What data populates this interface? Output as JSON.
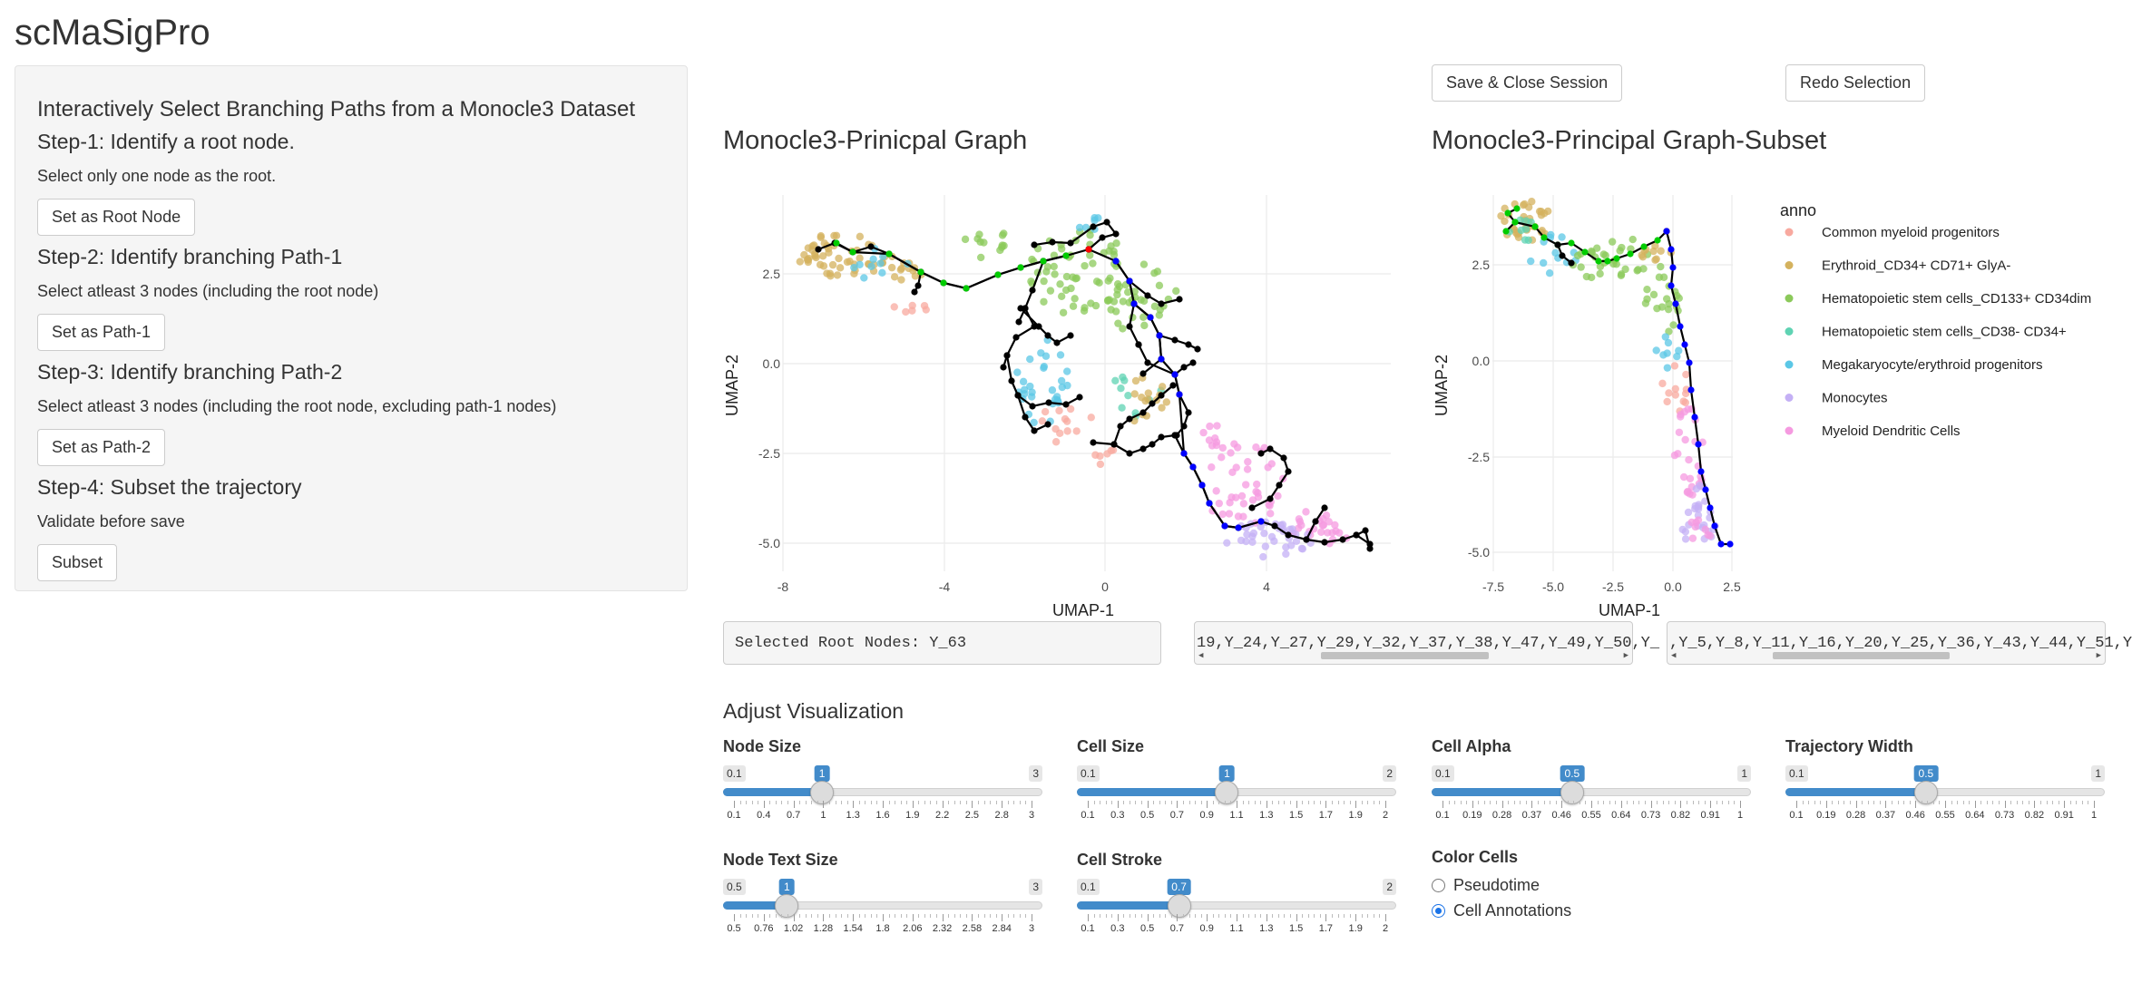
{
  "app": {
    "title": "scMaSigPro"
  },
  "sidebar": {
    "heading": "Interactively Select Branching Paths from a Monocle3 Dataset",
    "steps": [
      {
        "title": "Step-1: Identify a root node.",
        "help": "Select only one node as the root.",
        "button": "Set as Root Node"
      },
      {
        "title": "Step-2: Identify branching Path-1",
        "help": "Select atleast 3 nodes (including the root node)",
        "button": "Set as Path-1"
      },
      {
        "title": "Step-3: Identify branching Path-2",
        "help": "Select atleast 3 nodes (including the root node, excluding path-1 nodes)",
        "button": "Set as Path-2"
      },
      {
        "title": "Step-4: Subset the trajectory",
        "help": "Validate before save",
        "button": "Subset"
      }
    ]
  },
  "toolbar": {
    "save_close": "Save & Close Session",
    "redo": "Redo Selection"
  },
  "plots": {
    "main": {
      "title": "Monocle3-Prinicpal Graph",
      "xlabel": "UMAP-1",
      "ylabel": "UMAP-2",
      "xticks": [
        "-8",
        "-4",
        "0",
        "4"
      ],
      "yticks": [
        "2.5",
        "0.0",
        "-2.5",
        "-5.0"
      ]
    },
    "subset": {
      "title": "Monocle3-Principal Graph-Subset",
      "xlabel": "UMAP-1",
      "ylabel": "UMAP-2",
      "xticks": [
        "-7.5",
        "-5.0",
        "-2.5",
        "0.0",
        "2.5"
      ],
      "yticks": [
        "2.5",
        "0.0",
        "-2.5",
        "-5.0"
      ]
    },
    "legend": {
      "title": "anno",
      "items": [
        {
          "label": "Common myeloid progenitors",
          "color": "#F8A99F"
        },
        {
          "label": "Erythroid_CD34+ CD71+ GlyA-",
          "color": "#D4B25E"
        },
        {
          "label": "Hematopoietic stem cells_CD133+ CD34dim",
          "color": "#8BC95A"
        },
        {
          "label": "Hematopoietic stem cells_CD38- CD34+",
          "color": "#5FD3B3"
        },
        {
          "label": "Megakaryocyte/erythroid progenitors",
          "color": "#5BC7E6"
        },
        {
          "label": "Monocytes",
          "color": "#C4B0F5"
        },
        {
          "label": "Myeloid Dendritic Cells",
          "color": "#F59AE0"
        }
      ]
    }
  },
  "outputs": {
    "root": "Selected Root Nodes: Y_63",
    "path1": "19,Y_24,Y_27,Y_29,Y_32,Y_37,Y_38,Y_47,Y_49,Y_50,Y_",
    "path2": ",Y_5,Y_8,Y_11,Y_16,Y_20,Y_25,Y_36,Y_43,Y_44,Y_51,Y"
  },
  "viz": {
    "title": "Adjust Visualization",
    "sliders": [
      {
        "label": "Node Size",
        "min": "0.1",
        "max": "3",
        "value": "1",
        "fraction": 0.31,
        "ticks": [
          "0.1",
          "0.4",
          "0.7",
          "1",
          "1.3",
          "1.6",
          "1.9",
          "2.2",
          "2.5",
          "2.8",
          "3"
        ]
      },
      {
        "label": "Cell Size",
        "min": "0.1",
        "max": "2",
        "value": "1",
        "fraction": 0.47,
        "ticks": [
          "0.1",
          "0.3",
          "0.5",
          "0.7",
          "0.9",
          "1.1",
          "1.3",
          "1.5",
          "1.7",
          "1.9",
          "2"
        ]
      },
      {
        "label": "Cell Alpha",
        "min": "0.1",
        "max": "1",
        "value": "0.5",
        "fraction": 0.44,
        "ticks": [
          "0.1",
          "0.19",
          "0.28",
          "0.37",
          "0.46",
          "0.55",
          "0.64",
          "0.73",
          "0.82",
          "0.91",
          "1"
        ]
      },
      {
        "label": "Trajectory Width",
        "min": "0.1",
        "max": "1",
        "value": "0.5",
        "fraction": 0.44,
        "ticks": [
          "0.1",
          "0.19",
          "0.28",
          "0.37",
          "0.46",
          "0.55",
          "0.64",
          "0.73",
          "0.82",
          "0.91",
          "1"
        ]
      },
      {
        "label": "Node Text Size",
        "min": "0.5",
        "max": "3",
        "value": "1",
        "fraction": 0.2,
        "ticks": [
          "0.5",
          "0.76",
          "1.02",
          "1.28",
          "1.54",
          "1.8",
          "2.06",
          "2.32",
          "2.58",
          "2.84",
          "3"
        ]
      },
      {
        "label": "Cell Stroke",
        "min": "0.1",
        "max": "2",
        "value": "0.7",
        "fraction": 0.32,
        "ticks": [
          "0.1",
          "0.3",
          "0.5",
          "0.7",
          "0.9",
          "1.1",
          "1.3",
          "1.5",
          "1.7",
          "1.9",
          "2"
        ]
      }
    ],
    "color_cells": {
      "label": "Color Cells",
      "options": [
        {
          "label": "Pseudotime",
          "selected": false
        },
        {
          "label": "Cell Annotations",
          "selected": true
        }
      ]
    }
  }
}
